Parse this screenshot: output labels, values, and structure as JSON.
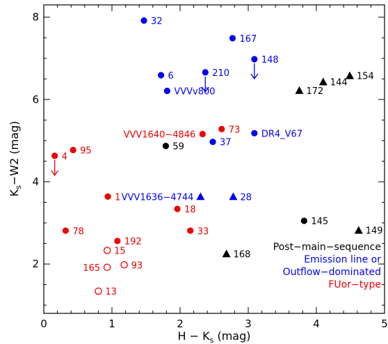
{
  "chart_data": {
    "type": "scatter",
    "title": "",
    "xlabel": "H − K",
    "xlabel_sub": "s",
    "xlabel_unit": " (mag)",
    "ylabel": "K",
    "ylabel_sub": "s",
    "ylabel_rest": "−W2 (mag)",
    "xlim": [
      0,
      5
    ],
    "ylim": [
      0.8,
      8.3
    ],
    "xticks": [
      0,
      1,
      2,
      3,
      4,
      5
    ],
    "yticks": [
      2,
      4,
      6,
      8
    ],
    "grid": false,
    "legend_position": "bottom-right",
    "legend": [
      {
        "text": "Post−main−sequence",
        "color": "#000000"
      },
      {
        "text": "Emission line or",
        "color": "#0000ee"
      },
      {
        "text": "Outflow−dominated",
        "color": "#0000ee"
      },
      {
        "text": "FUor−type",
        "color": "#ee0000"
      }
    ],
    "colors": {
      "post_main_sequence": "#000000",
      "emission_outflow": "#0000ee",
      "fuor": "#ee0000"
    },
    "points": [
      {
        "label": "32",
        "x": 1.47,
        "y": 7.92,
        "group": "emission_outflow",
        "marker": "circle",
        "label_side": "right"
      },
      {
        "label": "167",
        "x": 2.77,
        "y": 7.49,
        "group": "emission_outflow",
        "marker": "circle",
        "label_side": "right"
      },
      {
        "label": "148",
        "x": 3.09,
        "y": 6.98,
        "group": "emission_outflow",
        "marker": "circle",
        "label_side": "right",
        "upper_limit": true
      },
      {
        "label": "6",
        "x": 1.72,
        "y": 6.59,
        "group": "emission_outflow",
        "marker": "circle",
        "label_side": "right"
      },
      {
        "label": "210",
        "x": 2.37,
        "y": 6.66,
        "group": "emission_outflow",
        "marker": "circle",
        "label_side": "right",
        "upper_limit": true
      },
      {
        "label": "VVVv800",
        "x": 1.81,
        "y": 6.21,
        "group": "emission_outflow",
        "marker": "circle",
        "label_side": "right"
      },
      {
        "label": "172",
        "x": 3.75,
        "y": 6.22,
        "group": "post_main_sequence",
        "marker": "triangle",
        "label_side": "right"
      },
      {
        "label": "144",
        "x": 4.1,
        "y": 6.43,
        "group": "post_main_sequence",
        "marker": "triangle",
        "label_side": "right"
      },
      {
        "label": "154",
        "x": 4.49,
        "y": 6.58,
        "group": "post_main_sequence",
        "marker": "triangle",
        "label_side": "right"
      },
      {
        "label": "73",
        "x": 2.61,
        "y": 5.28,
        "group": "fuor",
        "marker": "circle",
        "label_side": "right"
      },
      {
        "label": "VVV1640−4846",
        "x": 2.33,
        "y": 5.16,
        "group": "fuor",
        "marker": "circle",
        "label_side": "left"
      },
      {
        "label": "DR4_V67",
        "x": 3.09,
        "y": 5.18,
        "group": "emission_outflow",
        "marker": "circle",
        "label_side": "right"
      },
      {
        "label": "59",
        "x": 1.79,
        "y": 4.87,
        "group": "post_main_sequence",
        "marker": "circle",
        "label_side": "right"
      },
      {
        "label": "37",
        "x": 2.48,
        "y": 4.97,
        "group": "emission_outflow",
        "marker": "circle",
        "label_side": "right"
      },
      {
        "label": "95",
        "x": 0.43,
        "y": 4.77,
        "group": "fuor",
        "marker": "circle",
        "label_side": "right"
      },
      {
        "label": "4",
        "x": 0.16,
        "y": 4.63,
        "group": "fuor",
        "marker": "circle",
        "label_side": "right",
        "upper_limit": true
      },
      {
        "label": "1",
        "x": 0.94,
        "y": 3.64,
        "group": "fuor",
        "marker": "circle",
        "label_side": "right"
      },
      {
        "label": "VVV1636−4744",
        "x": 2.3,
        "y": 3.64,
        "group": "emission_outflow",
        "marker": "triangle",
        "label_side": "left"
      },
      {
        "label": "28",
        "x": 2.78,
        "y": 3.64,
        "group": "emission_outflow",
        "marker": "triangle",
        "label_side": "right"
      },
      {
        "label": "18",
        "x": 1.96,
        "y": 3.34,
        "group": "fuor",
        "marker": "circle",
        "label_side": "right"
      },
      {
        "label": "145",
        "x": 3.82,
        "y": 3.05,
        "group": "post_main_sequence",
        "marker": "circle",
        "label_side": "right"
      },
      {
        "label": "149",
        "x": 4.62,
        "y": 2.82,
        "group": "post_main_sequence",
        "marker": "triangle",
        "label_side": "right"
      },
      {
        "label": "78",
        "x": 0.32,
        "y": 2.81,
        "group": "fuor",
        "marker": "circle",
        "label_side": "right"
      },
      {
        "label": "33",
        "x": 2.15,
        "y": 2.81,
        "group": "fuor",
        "marker": "circle",
        "label_side": "right"
      },
      {
        "label": "192",
        "x": 1.08,
        "y": 2.56,
        "group": "fuor",
        "marker": "circle",
        "label_side": "right"
      },
      {
        "label": "15",
        "x": 0.93,
        "y": 2.33,
        "group": "fuor",
        "marker": "open-circle",
        "label_side": "right"
      },
      {
        "label": "168",
        "x": 2.68,
        "y": 2.25,
        "group": "post_main_sequence",
        "marker": "triangle",
        "label_side": "right"
      },
      {
        "label": "165",
        "x": 0.93,
        "y": 1.92,
        "group": "fuor",
        "marker": "open-circle",
        "label_side": "left"
      },
      {
        "label": "93",
        "x": 1.18,
        "y": 1.98,
        "group": "fuor",
        "marker": "open-circle",
        "label_side": "right"
      },
      {
        "label": "13",
        "x": 0.8,
        "y": 1.34,
        "group": "fuor",
        "marker": "open-circle",
        "label_side": "right"
      }
    ]
  }
}
